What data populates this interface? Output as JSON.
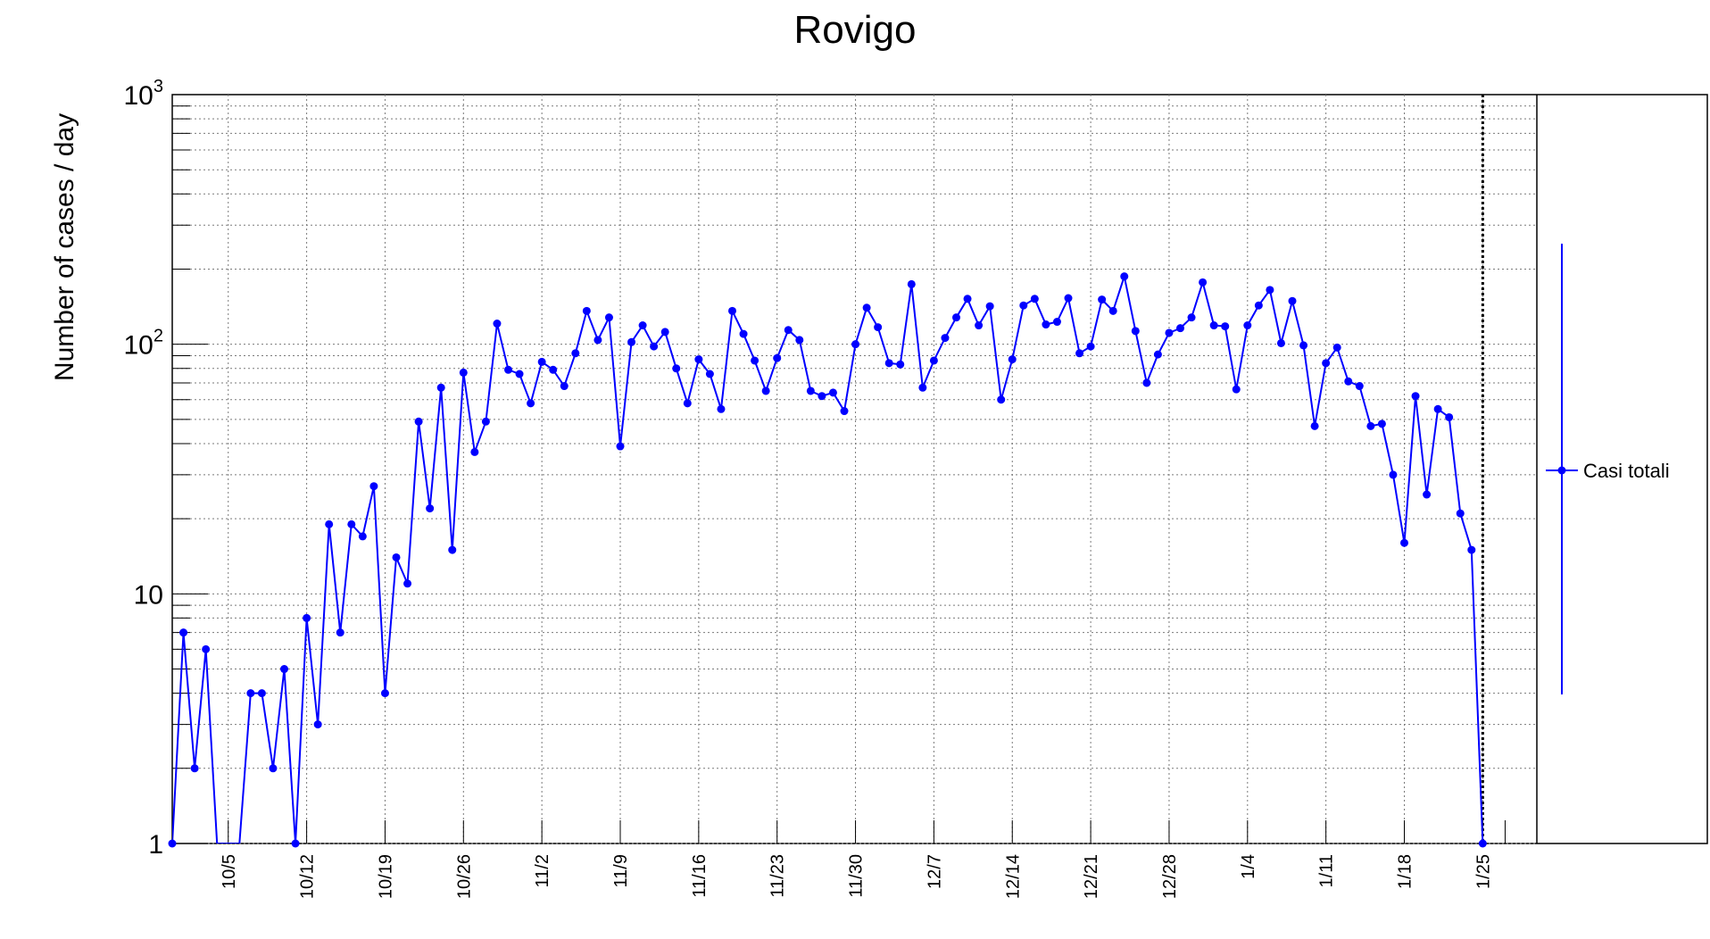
{
  "chart_data": {
    "type": "line",
    "title": "Rovigo",
    "xlabel": "",
    "ylabel": "Number of cases / day",
    "yscale": "log",
    "ylim": [
      1,
      1000
    ],
    "y_ticks": [
      {
        "value": 1,
        "label": "1"
      },
      {
        "value": 10,
        "label": "10"
      },
      {
        "value": 100,
        "label": "10²"
      },
      {
        "value": 1000,
        "label": "10³"
      }
    ],
    "x_start": "9/30",
    "x_tick_labels": [
      "10/5",
      "10/12",
      "10/19",
      "10/26",
      "11/2",
      "11/9",
      "11/16",
      "11/23",
      "11/30",
      "12/7",
      "12/14",
      "12/21",
      "12/28",
      "1/4",
      "1/11",
      "1/18",
      "1/25"
    ],
    "x_tick_day_index": [
      5,
      12,
      19,
      26,
      33,
      40,
      47,
      54,
      61,
      68,
      75,
      82,
      89,
      96,
      103,
      110,
      117
    ],
    "grid": true,
    "marker_line_day_index": 117,
    "legend": {
      "position": "right",
      "entries": [
        {
          "label": "Casi totali",
          "color": "#0000ff"
        }
      ]
    },
    "series": [
      {
        "name": "Casi totali",
        "color": "#0000ff",
        "values": [
          1,
          7,
          2,
          6,
          0,
          0,
          0,
          4,
          4,
          2,
          5,
          1,
          8,
          3,
          19,
          7,
          19,
          17,
          27,
          4,
          14,
          11,
          49,
          22,
          67,
          15,
          77,
          37,
          49,
          121,
          79,
          76,
          58,
          85,
          79,
          68,
          92,
          136,
          104,
          128,
          39,
          102,
          119,
          98,
          112,
          80,
          58,
          87,
          76,
          55,
          136,
          110,
          86,
          65,
          88,
          114,
          104,
          65,
          62,
          64,
          54,
          100,
          140,
          117,
          84,
          83,
          174,
          67,
          86,
          106,
          128,
          152,
          119,
          142,
          60,
          87,
          143,
          152,
          120,
          123,
          153,
          92,
          98,
          151,
          136,
          187,
          113,
          70,
          91,
          111,
          116,
          128,
          177,
          119,
          118,
          66,
          119,
          143,
          165,
          101,
          149,
          99,
          47,
          84,
          97,
          71,
          68,
          47,
          48,
          30,
          16,
          62,
          25,
          55,
          51,
          21,
          15,
          1
        ]
      }
    ]
  }
}
